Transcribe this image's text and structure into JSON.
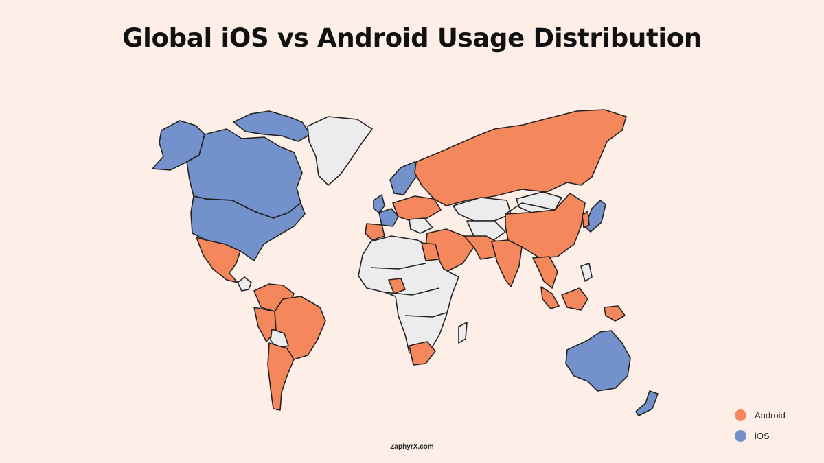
{
  "title": "Global iOS vs Android Usage Distribution",
  "legend": [
    {
      "label": "Android",
      "color": "#f4875c"
    },
    {
      "label": "iOS",
      "color": "#7392cc"
    }
  ],
  "colors": {
    "android": "#f4875c",
    "ios": "#7392cc",
    "no_data": "#ececec",
    "background": "#fdeee8"
  },
  "footer": "ZaphyrX.com"
}
